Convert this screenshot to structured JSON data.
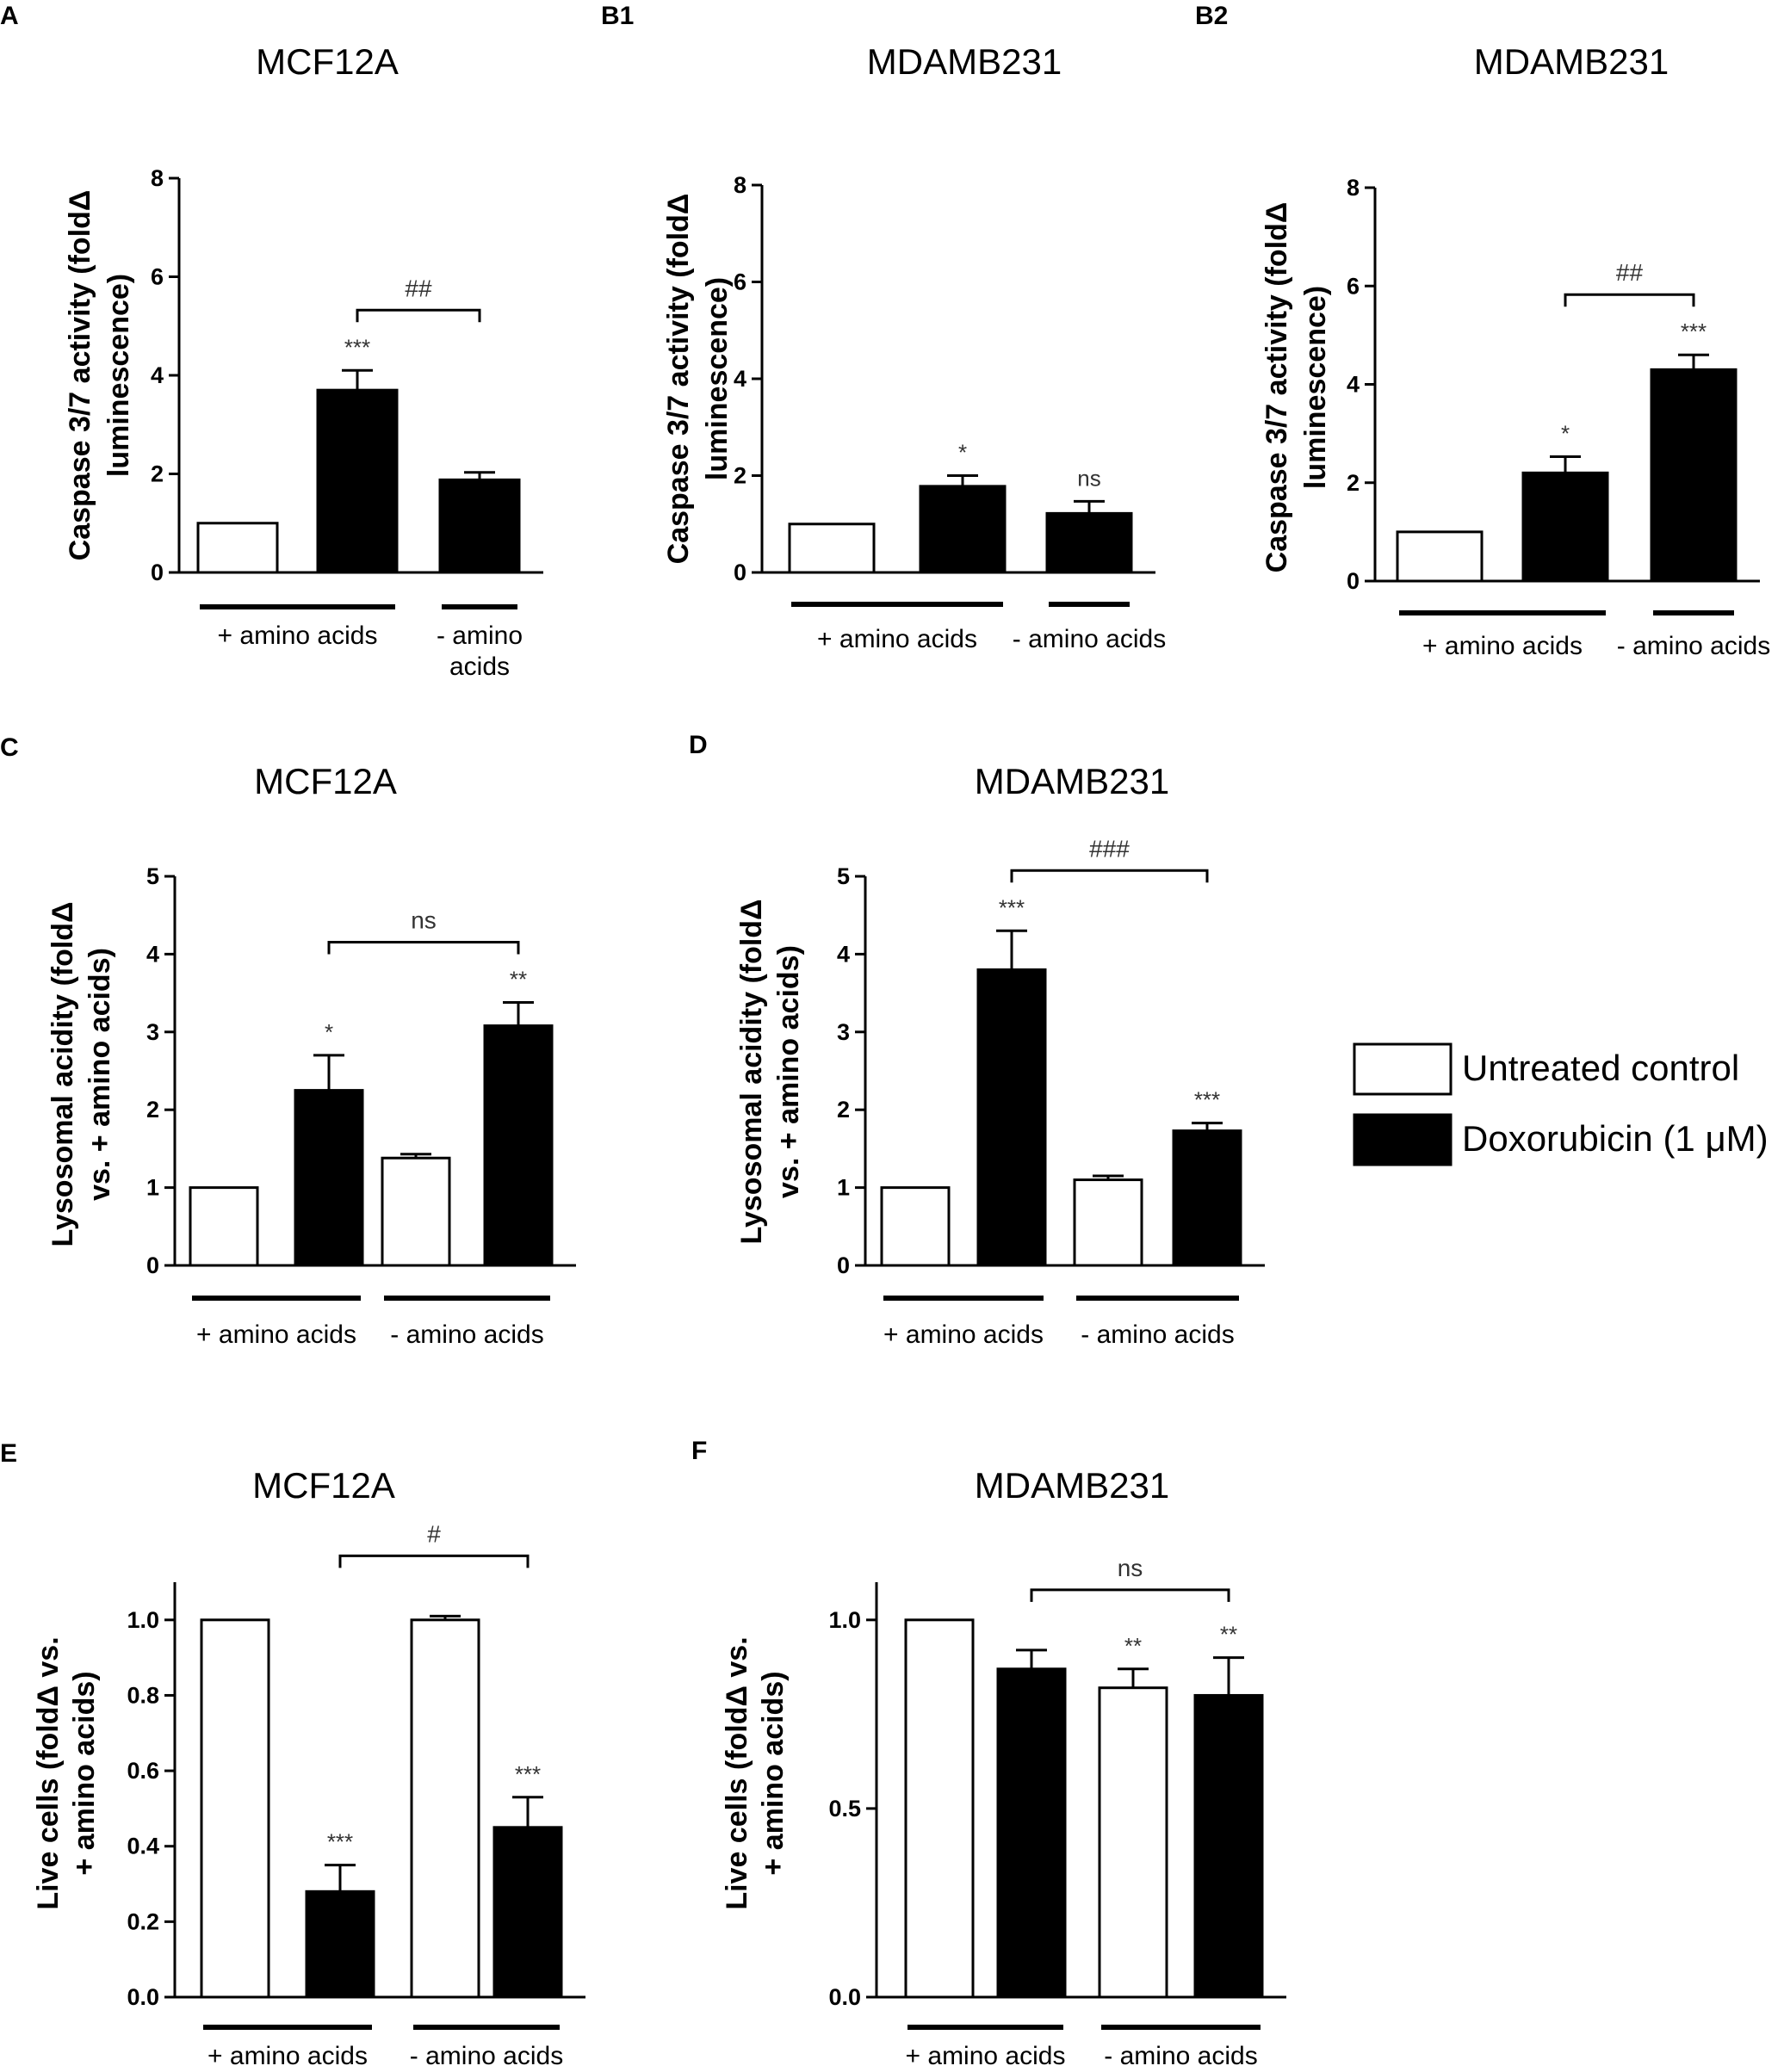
{
  "legend": [
    {
      "key": "control",
      "label": "Untreated control",
      "fill": "#ffffff"
    },
    {
      "key": "dox",
      "label": "Doxorubicin (1 μM)",
      "fill": "#000000"
    }
  ],
  "colors": {
    "open_bar": "#ffffff",
    "filled_bar": "#000000",
    "axis": "#000000"
  },
  "chart_data": [
    {
      "id": "A",
      "panel_label": "A",
      "title": "MCF12A",
      "type": "bar",
      "ylabel_lines": [
        "Caspase 3/7 activity (foldΔ",
        "luminescence)"
      ],
      "ylim": [
        0,
        8
      ],
      "yticks": [
        "0",
        "2",
        "4",
        "6",
        "8"
      ],
      "bars": [
        {
          "value": 1.0,
          "error": 0,
          "fill": "open",
          "sig": ""
        },
        {
          "value": 3.7,
          "error": 0.4,
          "fill": "filled",
          "sig": "***"
        },
        {
          "value": 1.88,
          "error": 0.15,
          "fill": "filled",
          "sig": ""
        }
      ],
      "groups": [
        {
          "label_lines": [
            "+ amino acids"
          ],
          "bars": [
            0,
            1
          ]
        },
        {
          "label_lines": [
            "- amino",
            "acids"
          ],
          "bars": [
            2,
            2
          ]
        }
      ],
      "bracket": {
        "from": 1,
        "to": 2,
        "label": "##"
      }
    },
    {
      "id": "B1",
      "panel_label": "B1",
      "title": "MDAMB231",
      "type": "bar",
      "ylabel_lines": [
        "Caspase 3/7 activity (foldΔ",
        "luminescence)"
      ],
      "ylim": [
        0,
        8
      ],
      "yticks": [
        "0",
        "2",
        "4",
        "6",
        "8"
      ],
      "bars": [
        {
          "value": 1.0,
          "error": 0,
          "fill": "open",
          "sig": ""
        },
        {
          "value": 1.78,
          "error": 0.22,
          "fill": "filled",
          "sig": "*"
        },
        {
          "value": 1.22,
          "error": 0.25,
          "fill": "filled",
          "sig": "ns"
        }
      ],
      "groups": [
        {
          "label_lines": [
            "+ amino acids"
          ],
          "bars": [
            0,
            1
          ]
        },
        {
          "label_lines": [
            "- amino acids"
          ],
          "bars": [
            2,
            2
          ]
        }
      ],
      "bracket": null
    },
    {
      "id": "B2",
      "panel_label": "B2",
      "title": "MDAMB231",
      "type": "bar",
      "ylabel_lines": [
        "Caspase 3/7 activity (foldΔ",
        "luminescence)"
      ],
      "ylim": [
        0,
        8
      ],
      "yticks": [
        "0",
        "2",
        "4",
        "6",
        "8"
      ],
      "bars": [
        {
          "value": 1.0,
          "error": 0,
          "fill": "open",
          "sig": ""
        },
        {
          "value": 2.2,
          "error": 0.33,
          "fill": "filled",
          "sig": "*"
        },
        {
          "value": 4.3,
          "error": 0.3,
          "fill": "filled",
          "sig": "***"
        }
      ],
      "groups": [
        {
          "label_lines": [
            "+ amino acids"
          ],
          "bars": [
            0,
            1
          ]
        },
        {
          "label_lines": [
            "- amino acids"
          ],
          "bars": [
            2,
            2
          ]
        }
      ],
      "bracket": {
        "from": 1,
        "to": 2,
        "label": "##"
      }
    },
    {
      "id": "C",
      "panel_label": "C",
      "title": "MCF12A",
      "type": "bar",
      "ylabel_lines": [
        "Lysosomal acidity (foldΔ",
        "vs. + amino acids)"
      ],
      "ylim": [
        0,
        5
      ],
      "yticks": [
        "0",
        "1",
        "2",
        "3",
        "4",
        "5"
      ],
      "bars": [
        {
          "value": 1.0,
          "error": 0,
          "fill": "open",
          "sig": ""
        },
        {
          "value": 2.25,
          "error": 0.45,
          "fill": "filled",
          "sig": "*"
        },
        {
          "value": 1.38,
          "error": 0.05,
          "fill": "open",
          "sig": ""
        },
        {
          "value": 3.08,
          "error": 0.3,
          "fill": "filled",
          "sig": "**"
        }
      ],
      "groups": [
        {
          "label_lines": [
            "+ amino acids"
          ],
          "bars": [
            0,
            1
          ]
        },
        {
          "label_lines": [
            "- amino acids"
          ],
          "bars": [
            2,
            3
          ]
        }
      ],
      "bracket": {
        "from": 1,
        "to": 3,
        "label": "ns"
      }
    },
    {
      "id": "D",
      "panel_label": "D",
      "title": "MDAMB231",
      "type": "bar",
      "ylabel_lines": [
        "Lysosomal acidity (foldΔ",
        "vs. + amino acids)"
      ],
      "ylim": [
        0,
        5
      ],
      "yticks": [
        "0",
        "1",
        "2",
        "3",
        "4",
        "5"
      ],
      "bars": [
        {
          "value": 1.0,
          "error": 0,
          "fill": "open",
          "sig": ""
        },
        {
          "value": 3.8,
          "error": 0.5,
          "fill": "filled",
          "sig": "***"
        },
        {
          "value": 1.1,
          "error": 0.05,
          "fill": "open",
          "sig": ""
        },
        {
          "value": 1.73,
          "error": 0.1,
          "fill": "filled",
          "sig": "***"
        }
      ],
      "groups": [
        {
          "label_lines": [
            "+ amino acids"
          ],
          "bars": [
            0,
            1
          ]
        },
        {
          "label_lines": [
            "- amino acids"
          ],
          "bars": [
            2,
            3
          ]
        }
      ],
      "bracket": {
        "from": 1,
        "to": 3,
        "label": "###"
      }
    },
    {
      "id": "E",
      "panel_label": "E",
      "title": "MCF12A",
      "type": "bar",
      "ylabel_lines": [
        "Live cells (foldΔ vs.",
        "+ amino acids)"
      ],
      "ylim": [
        0,
        1.1
      ],
      "yticks": [
        "0.0",
        "0.2",
        "0.4",
        "0.6",
        "0.8",
        "1.0"
      ],
      "bars": [
        {
          "value": 1.0,
          "error": 0,
          "fill": "open",
          "sig": ""
        },
        {
          "value": 0.28,
          "error": 0.07,
          "fill": "filled",
          "sig": "***"
        },
        {
          "value": 1.0,
          "error": 0.01,
          "fill": "open",
          "sig": ""
        },
        {
          "value": 0.45,
          "error": 0.08,
          "fill": "filled",
          "sig": "***"
        }
      ],
      "groups": [
        {
          "label_lines": [
            "+ amino acids"
          ],
          "bars": [
            0,
            1
          ]
        },
        {
          "label_lines": [
            "- amino acids"
          ],
          "bars": [
            2,
            3
          ]
        }
      ],
      "bracket": {
        "from": 1,
        "to": 3,
        "label": "#"
      }
    },
    {
      "id": "F",
      "panel_label": "F",
      "title": "MDAMB231",
      "type": "bar",
      "ylabel_lines": [
        "Live cells (foldΔ vs.",
        "+ amino acids)"
      ],
      "ylim": [
        0,
        1.1
      ],
      "yticks": [
        "0.0",
        "0.5",
        "1.0"
      ],
      "bars": [
        {
          "value": 1.0,
          "error": 0,
          "fill": "open",
          "sig": ""
        },
        {
          "value": 0.87,
          "error": 0.05,
          "fill": "filled",
          "sig": ""
        },
        {
          "value": 0.82,
          "error": 0.05,
          "fill": "open",
          "sig": "**"
        },
        {
          "value": 0.8,
          "error": 0.1,
          "fill": "filled",
          "sig": "**"
        }
      ],
      "groups": [
        {
          "label_lines": [
            "+ amino acids"
          ],
          "bars": [
            0,
            1
          ]
        },
        {
          "label_lines": [
            "- amino acids"
          ],
          "bars": [
            2,
            3
          ]
        }
      ],
      "bracket": {
        "from": 1,
        "to": 3,
        "label": "ns"
      }
    }
  ]
}
